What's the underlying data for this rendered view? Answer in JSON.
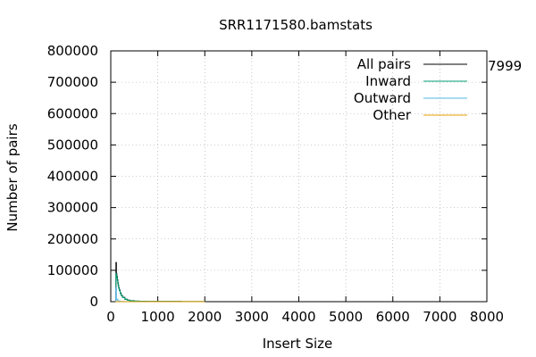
{
  "chart_data": {
    "type": "line",
    "title": "SRR1171580.bamstats",
    "xlabel": "Insert Size",
    "ylabel": "Number of pairs",
    "xlim": [
      0,
      8000
    ],
    "ylim": [
      0,
      800000
    ],
    "x_ticks": [
      "0",
      "1000",
      "2000",
      "3000",
      "4000",
      "5000",
      "6000",
      "7000",
      "8000"
    ],
    "y_ticks": [
      "0",
      "100000",
      "200000",
      "300000",
      "400000",
      "500000",
      "600000",
      "700000",
      "800000"
    ],
    "grid": true,
    "legend_position": "top-right",
    "annotation": "7999",
    "series": [
      {
        "name": "All pairs",
        "color": "#000000",
        "x": [
          100,
          110,
          120,
          130,
          140,
          150,
          160,
          170,
          180,
          200,
          220,
          250,
          300,
          350,
          400,
          500,
          600,
          800,
          1000,
          1500,
          2000
        ],
        "y": [
          5000,
          125000,
          90000,
          80000,
          70000,
          60000,
          52000,
          44000,
          37000,
          28000,
          20000,
          14000,
          8000,
          5000,
          3000,
          1800,
          1200,
          800,
          500,
          300,
          200
        ]
      },
      {
        "name": "Inward",
        "color": "#009e73",
        "x": [
          100,
          110,
          120,
          130,
          140,
          150,
          160,
          170,
          180,
          200,
          220,
          250,
          300,
          350,
          400,
          500,
          600,
          800,
          1000,
          1500,
          2000
        ],
        "y": [
          4000,
          90000,
          82000,
          76000,
          66000,
          57000,
          49000,
          42000,
          35000,
          26000,
          19000,
          13000,
          7500,
          4500,
          2800,
          1600,
          1000,
          700,
          450,
          250,
          150
        ]
      },
      {
        "name": "Outward",
        "color": "#56b4e9",
        "x": [
          100,
          110,
          120,
          150,
          200,
          300,
          400
        ],
        "y": [
          2000,
          45000,
          8000,
          2000,
          800,
          300,
          100
        ]
      },
      {
        "name": "Other",
        "color": "#e69f00",
        "x": [
          100,
          500,
          1000,
          2000
        ],
        "y": [
          0,
          0,
          0,
          0
        ]
      }
    ]
  }
}
